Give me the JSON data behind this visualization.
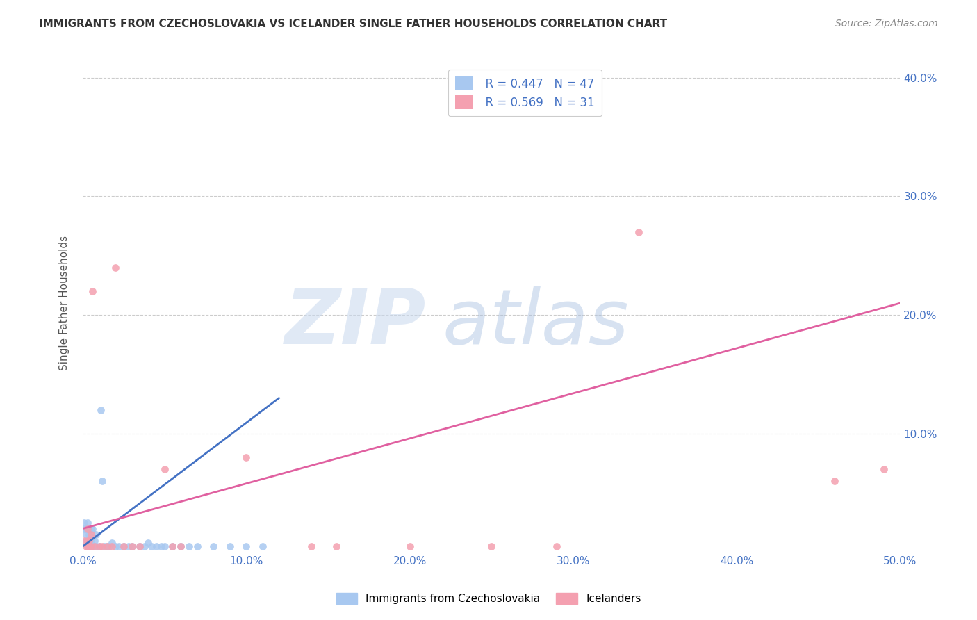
{
  "title": "IMMIGRANTS FROM CZECHOSLOVAKIA VS ICELANDER SINGLE FATHER HOUSEHOLDS CORRELATION CHART",
  "source": "Source: ZipAtlas.com",
  "ylabel": "Single Father Households",
  "xlim": [
    0.0,
    0.5
  ],
  "ylim": [
    0.0,
    0.42
  ],
  "xticks": [
    0.0,
    0.1,
    0.2,
    0.3,
    0.4,
    0.5
  ],
  "yticks": [
    0.0,
    0.1,
    0.2,
    0.3,
    0.4
  ],
  "xtick_labels": [
    "0.0%",
    "10.0%",
    "20.0%",
    "30.0%",
    "40.0%",
    "50.0%"
  ],
  "ytick_labels": [
    "",
    "10.0%",
    "20.0%",
    "30.0%",
    "40.0%"
  ],
  "legend_r1": "R = 0.447",
  "legend_n1": "N = 47",
  "legend_r2": "R = 0.569",
  "legend_n2": "N = 31",
  "color_blue": "#a8c8f0",
  "color_pink": "#f4a0b0",
  "color_blue_text": "#4472c4",
  "color_pink_line": "#e060a0",
  "blue_scatter_x": [
    0.001,
    0.001,
    0.002,
    0.002,
    0.002,
    0.003,
    0.003,
    0.003,
    0.003,
    0.004,
    0.004,
    0.004,
    0.005,
    0.005,
    0.005,
    0.006,
    0.006,
    0.007,
    0.008,
    0.008,
    0.01,
    0.011,
    0.012,
    0.013,
    0.015,
    0.016,
    0.018,
    0.02,
    0.022,
    0.025,
    0.028,
    0.03,
    0.035,
    0.038,
    0.04,
    0.042,
    0.045,
    0.048,
    0.05,
    0.055,
    0.06,
    0.065,
    0.07,
    0.08,
    0.09,
    0.1,
    0.11
  ],
  "blue_scatter_y": [
    0.02,
    0.025,
    0.01,
    0.015,
    0.02,
    0.005,
    0.01,
    0.02,
    0.025,
    0.005,
    0.01,
    0.015,
    0.005,
    0.01,
    0.02,
    0.005,
    0.02,
    0.01,
    0.005,
    0.015,
    0.005,
    0.12,
    0.06,
    0.005,
    0.005,
    0.005,
    0.008,
    0.005,
    0.005,
    0.005,
    0.005,
    0.005,
    0.005,
    0.005,
    0.008,
    0.005,
    0.005,
    0.005,
    0.005,
    0.005,
    0.005,
    0.005,
    0.005,
    0.005,
    0.005,
    0.005,
    0.005
  ],
  "pink_scatter_x": [
    0.001,
    0.002,
    0.003,
    0.003,
    0.003,
    0.004,
    0.004,
    0.005,
    0.005,
    0.006,
    0.007,
    0.01,
    0.012,
    0.015,
    0.018,
    0.02,
    0.025,
    0.03,
    0.035,
    0.05,
    0.055,
    0.06,
    0.1,
    0.14,
    0.155,
    0.2,
    0.25,
    0.29,
    0.34,
    0.46,
    0.49
  ],
  "pink_scatter_y": [
    0.01,
    0.005,
    0.005,
    0.01,
    0.02,
    0.005,
    0.01,
    0.005,
    0.015,
    0.22,
    0.005,
    0.005,
    0.005,
    0.005,
    0.005,
    0.24,
    0.005,
    0.005,
    0.005,
    0.07,
    0.005,
    0.005,
    0.08,
    0.005,
    0.005,
    0.005,
    0.005,
    0.005,
    0.27,
    0.06,
    0.07
  ],
  "blue_line_x": [
    0.0,
    0.12
  ],
  "blue_line_y": [
    0.005,
    0.13
  ],
  "pink_line_x": [
    0.0,
    0.5
  ],
  "pink_line_y": [
    0.02,
    0.21
  ],
  "grid_color": "#cccccc",
  "background_color": "#ffffff"
}
